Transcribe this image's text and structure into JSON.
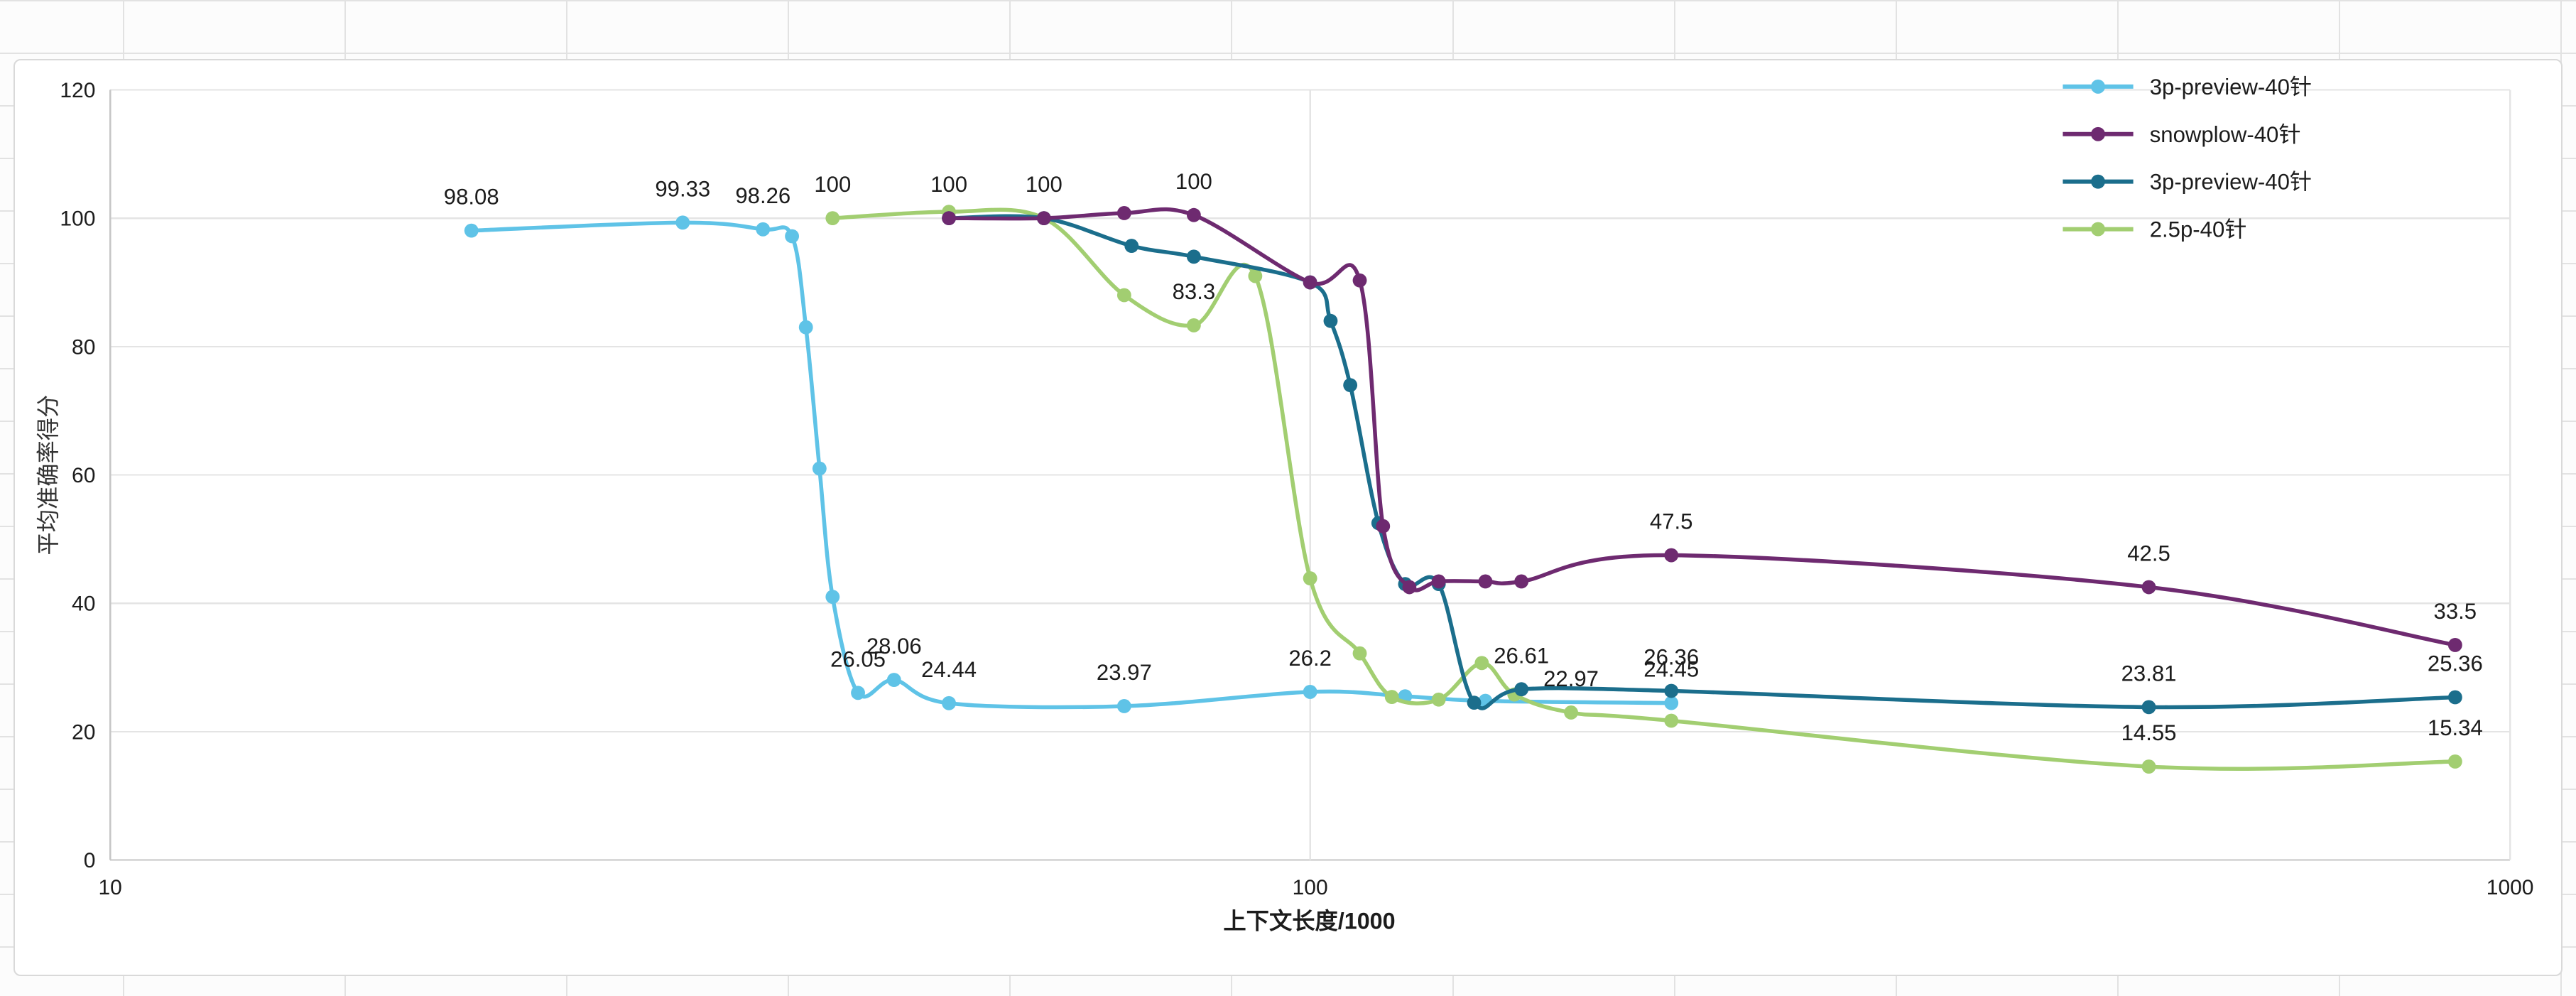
{
  "app": {
    "background_kind": "spreadsheet-grid",
    "card_border_color": "#d9d9d9"
  },
  "chart_data": {
    "type": "line",
    "title": "",
    "xlabel": "上下文长度/1000",
    "ylabel": "平均准确率得分",
    "x_scale": "log",
    "xlim": [
      10,
      1000
    ],
    "ylim": [
      0,
      120
    ],
    "x_ticks": [
      10,
      100,
      1000
    ],
    "y_ticks": [
      0,
      20,
      40,
      60,
      80,
      100,
      120
    ],
    "grid": {
      "horizontal": true,
      "vertical_at": [
        100,
        1000
      ]
    },
    "legend_position": "top-right",
    "series": [
      {
        "name": "3p-preview-40针",
        "color": "#5FC3E7",
        "points": [
          [
            20,
            98.08,
            "98.08"
          ],
          [
            30,
            99.33,
            "99.33"
          ],
          [
            35,
            98.26,
            "98.26"
          ],
          [
            37,
            97.2,
            ""
          ],
          [
            38,
            83.0,
            ""
          ],
          [
            39,
            61.0,
            ""
          ],
          [
            40,
            41.0,
            ""
          ],
          [
            42,
            26.05,
            "26.05"
          ],
          [
            45,
            28.06,
            "28.06"
          ],
          [
            50,
            24.44,
            "24.44"
          ],
          [
            70,
            23.97,
            "23.97"
          ],
          [
            100,
            26.2,
            "26.2"
          ],
          [
            120,
            25.5,
            ""
          ],
          [
            140,
            24.8,
            ""
          ],
          [
            200,
            24.45,
            "24.45"
          ]
        ]
      },
      {
        "name": "snowplow-40针",
        "color": "#6E2A70",
        "points": [
          [
            50,
            100,
            ""
          ],
          [
            60,
            100,
            "100"
          ],
          [
            70,
            100.8,
            ""
          ],
          [
            80,
            100.5,
            "100"
          ],
          [
            100,
            90,
            ""
          ],
          [
            110,
            90.3,
            ""
          ],
          [
            115,
            52,
            ""
          ],
          [
            121,
            42.5,
            ""
          ],
          [
            128,
            43.4,
            ""
          ],
          [
            140,
            43.4,
            ""
          ],
          [
            150,
            43.4,
            ""
          ],
          [
            200,
            47.5,
            "47.5"
          ],
          [
            500,
            42.5,
            "42.5"
          ],
          [
            900,
            33.5,
            "33.5"
          ]
        ]
      },
      {
        "name": "3p-preview-40针",
        "color": "#1B6E8C",
        "points": [
          [
            50,
            100,
            "100"
          ],
          [
            60,
            100,
            ""
          ],
          [
            71,
            95.7,
            ""
          ],
          [
            80,
            94,
            ""
          ],
          [
            100,
            90,
            ""
          ],
          [
            104,
            84,
            ""
          ],
          [
            108,
            74,
            ""
          ],
          [
            114,
            52.5,
            ""
          ],
          [
            120,
            43,
            ""
          ],
          [
            128,
            43,
            ""
          ],
          [
            137,
            24.5,
            ""
          ],
          [
            150,
            26.61,
            "26.61"
          ],
          [
            200,
            26.36,
            "26.36"
          ],
          [
            500,
            23.81,
            "23.81"
          ],
          [
            900,
            25.36,
            "25.36"
          ]
        ]
      },
      {
        "name": "2.5p-40针",
        "color": "#A2CE71",
        "points": [
          [
            40,
            100,
            "100"
          ],
          [
            50,
            101,
            ""
          ],
          [
            60,
            100,
            ""
          ],
          [
            70,
            88,
            ""
          ],
          [
            80,
            83.3,
            "83.3"
          ],
          [
            90,
            91,
            ""
          ],
          [
            100,
            43.9,
            ""
          ],
          [
            110,
            32.2,
            ""
          ],
          [
            117,
            25.4,
            ""
          ],
          [
            128,
            25.0,
            ""
          ],
          [
            139,
            30.7,
            ""
          ],
          [
            148,
            25.8,
            ""
          ],
          [
            165,
            22.97,
            "22.97"
          ],
          [
            200,
            21.7,
            ""
          ],
          [
            500,
            14.55,
            "14.55"
          ],
          [
            900,
            15.34,
            "15.34"
          ]
        ]
      }
    ]
  }
}
